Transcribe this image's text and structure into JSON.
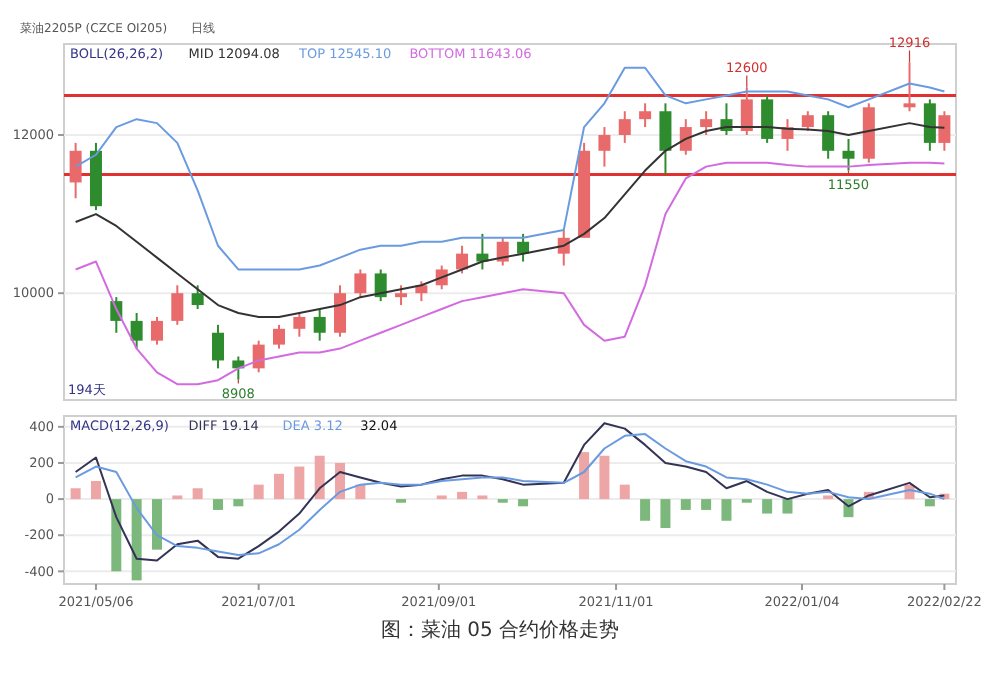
{
  "chart_data": [
    {
      "type": "candlestick",
      "title": "菜油2205P (CZCE OI205)",
      "subtitle": "日线",
      "legend_title": "BOLL(26,26,2)",
      "legend": "top left",
      "grid": "y",
      "tick_labels": "y",
      "x": [
        "2021-04-29",
        "2021-05-06",
        "2021-05-13",
        "2021-05-20",
        "2021-05-27",
        "2021-06-03",
        "2021-06-10",
        "2021-06-17",
        "2021-06-24",
        "2021-07-01",
        "2021-07-08",
        "2021-07-15",
        "2021-07-22",
        "2021-07-29",
        "2021-08-05",
        "2021-08-12",
        "2021-08-19",
        "2021-08-26",
        "2021-09-02",
        "2021-09-09",
        "2021-09-16",
        "2021-09-23",
        "2021-09-30",
        "2021-10-14",
        "2021-10-21",
        "2021-10-28",
        "2021-11-04",
        "2021-11-11",
        "2021-11-18",
        "2021-11-25",
        "2021-12-02",
        "2021-12-09",
        "2021-12-16",
        "2021-12-23",
        "2021-12-30",
        "2022-01-06",
        "2022-01-13",
        "2022-01-20",
        "2022-01-27",
        "2022-02-10",
        "2022-02-17",
        "2022-02-22"
      ],
      "xlim": [
        "2021-04-25",
        "2022-02-26"
      ],
      "ylim": [
        8650,
        13150
      ],
      "yticks": [
        10000,
        12000
      ],
      "ohlc": [
        [
          11400,
          11900,
          11200,
          11800
        ],
        [
          11800,
          11900,
          11050,
          11100
        ],
        [
          9900,
          9950,
          9500,
          9650
        ],
        [
          9650,
          9750,
          9300,
          9400
        ],
        [
          9400,
          9700,
          9350,
          9650
        ],
        [
          9650,
          10100,
          9600,
          10000
        ],
        [
          10000,
          10100,
          9800,
          9850
        ],
        [
          9500,
          9600,
          9050,
          9150
        ],
        [
          9150,
          9200,
          8908,
          9050
        ],
        [
          9050,
          9400,
          9000,
          9350
        ],
        [
          9350,
          9600,
          9300,
          9550
        ],
        [
          9550,
          9750,
          9450,
          9700
        ],
        [
          9700,
          9800,
          9400,
          9500
        ],
        [
          9500,
          10100,
          9450,
          10000
        ],
        [
          10000,
          10300,
          9950,
          10250
        ],
        [
          10250,
          10300,
          9900,
          9950
        ],
        [
          9950,
          10100,
          9850,
          10000
        ],
        [
          10000,
          10150,
          9900,
          10100
        ],
        [
          10100,
          10350,
          10050,
          10300
        ],
        [
          10300,
          10600,
          10250,
          10500
        ],
        [
          10500,
          10750,
          10300,
          10400
        ],
        [
          10400,
          10700,
          10350,
          10650
        ],
        [
          10650,
          10750,
          10400,
          10500
        ],
        [
          10500,
          10800,
          10350,
          10700
        ],
        [
          10700,
          11900,
          10700,
          11800
        ],
        [
          11800,
          12100,
          11600,
          12000
        ],
        [
          12000,
          12300,
          11900,
          12200
        ],
        [
          12200,
          12400,
          12100,
          12300
        ],
        [
          12300,
          12400,
          11500,
          11800
        ],
        [
          11800,
          12200,
          11750,
          12100
        ],
        [
          12100,
          12300,
          12000,
          12200
        ],
        [
          12200,
          12400,
          12000,
          12050
        ],
        [
          12050,
          12600,
          12000,
          12450
        ],
        [
          12450,
          12500,
          11900,
          11950
        ],
        [
          11950,
          12200,
          11800,
          12100
        ],
        [
          12100,
          12300,
          12050,
          12250
        ],
        [
          12250,
          12300,
          11700,
          11800
        ],
        [
          11800,
          11950,
          11550,
          11700
        ],
        [
          11700,
          12400,
          11650,
          12350
        ],
        [
          12350,
          12916,
          12300,
          12400
        ],
        [
          12400,
          12450,
          11800,
          11900
        ],
        [
          11900,
          12300,
          11800,
          12250
        ]
      ],
      "colors": [
        "#e86a6a",
        "#2e8b2e",
        "#2e8b2e",
        "#2e8b2e",
        "#e86a6a",
        "#e86a6a",
        "#2e8b2e",
        "#2e8b2e",
        "#2e8b2e",
        "#e86a6a",
        "#e86a6a",
        "#e86a6a",
        "#2e8b2e",
        "#e86a6a",
        "#e86a6a",
        "#2e8b2e",
        "#e86a6a",
        "#e86a6a",
        "#e86a6a",
        "#e86a6a",
        "#2e8b2e",
        "#e86a6a",
        "#2e8b2e",
        "#e86a6a",
        "#e86a6a",
        "#e86a6a",
        "#e86a6a",
        "#e86a6a",
        "#2e8b2e",
        "#e86a6a",
        "#e86a6a",
        "#2e8b2e",
        "#e86a6a",
        "#2e8b2e",
        "#e86a6a",
        "#e86a6a",
        "#2e8b2e",
        "#2e8b2e",
        "#e86a6a",
        "#e86a6a",
        "#2e8b2e",
        "#e86a6a"
      ],
      "series": [
        {
          "type": "line",
          "name": "MID 12094.08",
          "color": "#333333",
          "values": [
            10900,
            11000,
            10850,
            10650,
            10450,
            10250,
            10050,
            9850,
            9750,
            9700,
            9700,
            9750,
            9800,
            9850,
            9950,
            10000,
            10050,
            10100,
            10200,
            10300,
            10400,
            10450,
            10500,
            10600,
            10750,
            10950,
            11250,
            11550,
            11800,
            11950,
            12050,
            12100,
            12100,
            12100,
            12080,
            12070,
            12050,
            12000,
            12050,
            12150,
            12100,
            12090
          ]
        },
        {
          "type": "line",
          "name": "TOP 12545.10",
          "color": "#6a9be0",
          "values": [
            11600,
            11750,
            12100,
            12200,
            12150,
            11900,
            11300,
            10600,
            10300,
            10300,
            10300,
            10300,
            10350,
            10450,
            10550,
            10600,
            10600,
            10650,
            10650,
            10700,
            10700,
            10700,
            10700,
            10800,
            12100,
            12400,
            12850,
            12850,
            12500,
            12400,
            12450,
            12500,
            12550,
            12550,
            12550,
            12500,
            12450,
            12350,
            12450,
            12650,
            12600,
            12550
          ]
        },
        {
          "type": "line",
          "name": "BOTTOM 11643.06",
          "color": "#d36be0",
          "values": [
            10300,
            10400,
            9800,
            9300,
            9000,
            8850,
            8850,
            8900,
            9050,
            9150,
            9200,
            9250,
            9250,
            9300,
            9400,
            9500,
            9600,
            9700,
            9800,
            9900,
            9950,
            10000,
            10050,
            10000,
            9600,
            9400,
            9450,
            10100,
            11000,
            11450,
            11600,
            11650,
            11650,
            11650,
            11620,
            11600,
            11600,
            11600,
            11620,
            11650,
            11650,
            11640
          ]
        }
      ],
      "ref_lines": [
        {
          "axis": "y",
          "value": 12500,
          "color": "#e03030"
        },
        {
          "axis": "y",
          "value": 11500,
          "color": "#e03030"
        }
      ],
      "annotations": [
        "194天",
        {
          "text": "12600",
          "x": "2021-12-16",
          "y": 12600
        },
        {
          "text": "12916",
          "x": "2022-02-10",
          "y": 12916
        },
        {
          "text": "11550",
          "x": "2022-01-20",
          "y": 11550
        },
        {
          "text": "8908",
          "x": "2021-06-24",
          "y": 8908
        }
      ]
    },
    {
      "type": "bar",
      "legend_title": "MACD(12,26,9)",
      "legend": "top left",
      "grid": "y",
      "x": [
        "2021-04-29",
        "2021-05-06",
        "2021-05-13",
        "2021-05-20",
        "2021-05-27",
        "2021-06-03",
        "2021-06-10",
        "2021-06-17",
        "2021-06-24",
        "2021-07-01",
        "2021-07-08",
        "2021-07-15",
        "2021-07-22",
        "2021-07-29",
        "2021-08-05",
        "2021-08-12",
        "2021-08-19",
        "2021-08-26",
        "2021-09-02",
        "2021-09-09",
        "2021-09-16",
        "2021-09-23",
        "2021-09-30",
        "2021-10-14",
        "2021-10-21",
        "2021-10-28",
        "2021-11-04",
        "2021-11-11",
        "2021-11-18",
        "2021-11-25",
        "2021-12-02",
        "2021-12-09",
        "2021-12-16",
        "2021-12-23",
        "2021-12-30",
        "2022-01-06",
        "2022-01-13",
        "2022-01-20",
        "2022-01-27",
        "2022-02-10",
        "2022-02-17",
        "2022-02-22"
      ],
      "xlim": [
        "2021-04-25",
        "2022-02-26"
      ],
      "ylim": [
        -470,
        460
      ],
      "yticks": [
        -400,
        -200,
        0,
        200,
        400
      ],
      "xticks": [
        {
          "value": "2021-05-06",
          "label": "2021/05/06"
        },
        {
          "value": "2021-07-01",
          "label": "2021/07/01"
        },
        {
          "value": "2021-09-01",
          "label": "2021/09/01"
        },
        {
          "value": "2021-11-01",
          "label": "2021/11/01"
        },
        {
          "value": "2022-01-04",
          "label": "2022/01/04"
        },
        {
          "value": "2022-02-22",
          "label": "2022/02/22"
        }
      ],
      "values": [
        60,
        100,
        -400,
        -450,
        -280,
        20,
        60,
        -60,
        -40,
        80,
        140,
        180,
        240,
        200,
        80,
        0,
        -20,
        0,
        20,
        40,
        20,
        -20,
        -40,
        0,
        260,
        240,
        80,
        -120,
        -160,
        -60,
        -60,
        -120,
        -20,
        -80,
        -80,
        0,
        20,
        -100,
        40,
        80,
        -40,
        30
      ],
      "colors": [
        "#eda5a5",
        "#eda5a5",
        "#7cb87c",
        "#7cb87c",
        "#7cb87c",
        "#eda5a5",
        "#eda5a5",
        "#7cb87c",
        "#7cb87c",
        "#eda5a5",
        "#eda5a5",
        "#eda5a5",
        "#eda5a5",
        "#eda5a5",
        "#eda5a5",
        "#eda5a5",
        "#7cb87c",
        "#eda5a5",
        "#eda5a5",
        "#eda5a5",
        "#eda5a5",
        "#7cb87c",
        "#7cb87c",
        "#eda5a5",
        "#eda5a5",
        "#eda5a5",
        "#eda5a5",
        "#7cb87c",
        "#7cb87c",
        "#7cb87c",
        "#7cb87c",
        "#7cb87c",
        "#7cb87c",
        "#7cb87c",
        "#7cb87c",
        "#eda5a5",
        "#eda5a5",
        "#7cb87c",
        "#eda5a5",
        "#eda5a5",
        "#7cb87c",
        "#eda5a5"
      ],
      "series": [
        {
          "type": "line",
          "name": "DIFF 19.14",
          "color": "#333355",
          "values": [
            150,
            230,
            -100,
            -330,
            -340,
            -250,
            -230,
            -320,
            -330,
            -260,
            -180,
            -80,
            60,
            150,
            120,
            90,
            70,
            80,
            110,
            130,
            130,
            110,
            80,
            90,
            300,
            420,
            390,
            300,
            200,
            180,
            150,
            60,
            100,
            40,
            0,
            30,
            50,
            -40,
            20,
            90,
            10,
            20
          ]
        },
        {
          "type": "line",
          "name": "DEA 3.12",
          "color": "#6a9be0",
          "values": [
            120,
            180,
            150,
            -50,
            -200,
            -260,
            -270,
            -290,
            -310,
            -300,
            -250,
            -170,
            -60,
            40,
            80,
            90,
            80,
            80,
            100,
            110,
            120,
            120,
            100,
            90,
            150,
            280,
            350,
            360,
            280,
            210,
            180,
            120,
            110,
            80,
            40,
            30,
            40,
            10,
            0,
            50,
            30,
            0
          ]
        }
      ],
      "annotations": [
        "32.04",
        "图：菜油 05 合约价格走势"
      ]
    }
  ]
}
